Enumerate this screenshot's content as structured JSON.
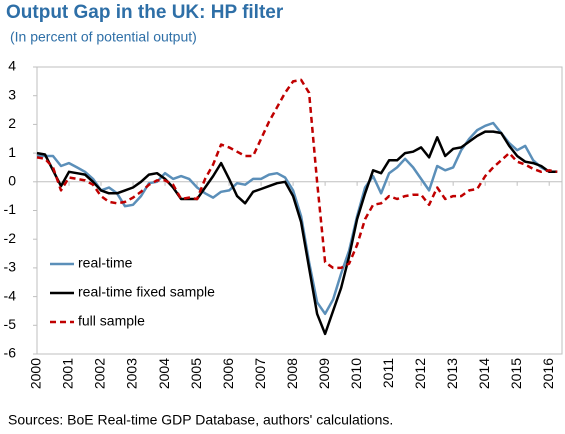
{
  "chart_data": {
    "type": "line",
    "title": "Output Gap in the UK: HP filter",
    "subtitle": "(In percent of potential output)",
    "source": "Sources: BoE Real-time GDP Database, authors' calculations.",
    "x": [
      2000,
      2000.25,
      2000.5,
      2000.75,
      2001,
      2001.25,
      2001.5,
      2001.75,
      2002,
      2002.25,
      2002.5,
      2002.75,
      2003,
      2003.25,
      2003.5,
      2003.75,
      2004,
      2004.25,
      2004.5,
      2004.75,
      2005,
      2005.25,
      2005.5,
      2005.75,
      2006,
      2006.25,
      2006.5,
      2006.75,
      2007,
      2007.25,
      2007.5,
      2007.75,
      2008,
      2008.25,
      2008.5,
      2008.75,
      2009,
      2009.25,
      2009.5,
      2009.75,
      2010,
      2010.25,
      2010.5,
      2010.75,
      2011,
      2011.25,
      2011.5,
      2011.75,
      2012,
      2012.25,
      2012.5,
      2012.75,
      2013,
      2013.25,
      2013.5,
      2013.75,
      2014,
      2014.25,
      2014.5,
      2014.75,
      2015,
      2015.25,
      2015.5,
      2015.75,
      2016,
      2016.25
    ],
    "series": [
      {
        "name": "real-time",
        "color": "#5b8fb9",
        "dashed": false,
        "values": [
          0.9,
          0.9,
          0.9,
          0.55,
          0.65,
          0.5,
          0.35,
          0.1,
          -0.3,
          -0.2,
          -0.4,
          -0.85,
          -0.8,
          -0.5,
          -0.05,
          0.0,
          0.3,
          0.1,
          0.2,
          0.1,
          -0.2,
          -0.4,
          -0.55,
          -0.35,
          -0.3,
          -0.05,
          -0.1,
          0.1,
          0.1,
          0.25,
          0.3,
          0.15,
          -0.3,
          -1.2,
          -2.8,
          -4.2,
          -4.6,
          -4.1,
          -3.2,
          -2.4,
          -1.2,
          -0.2,
          0.2,
          -0.4,
          0.3,
          0.5,
          0.8,
          0.5,
          0.1,
          -0.3,
          0.55,
          0.4,
          0.5,
          1.1,
          1.5,
          1.8,
          1.95,
          2.05,
          1.7,
          1.35,
          1.1,
          1.25,
          0.75,
          0.5,
          0.35,
          0.35
        ]
      },
      {
        "name": "real-time fixed sample",
        "color": "#000000",
        "dashed": false,
        "values": [
          1.0,
          0.95,
          0.4,
          -0.15,
          0.35,
          0.3,
          0.25,
          0.0,
          -0.3,
          -0.4,
          -0.4,
          -0.3,
          -0.2,
          0.0,
          0.25,
          0.3,
          0.1,
          -0.2,
          -0.6,
          -0.6,
          -0.6,
          -0.2,
          0.2,
          0.65,
          0.1,
          -0.5,
          -0.75,
          -0.35,
          -0.25,
          -0.15,
          -0.05,
          0.0,
          -0.5,
          -1.4,
          -3.0,
          -4.6,
          -5.3,
          -4.5,
          -3.7,
          -2.6,
          -1.3,
          -0.4,
          0.4,
          0.3,
          0.75,
          0.75,
          1.0,
          1.05,
          1.2,
          0.85,
          1.55,
          0.9,
          1.15,
          1.2,
          1.4,
          1.6,
          1.75,
          1.75,
          1.7,
          1.25,
          0.9,
          0.7,
          0.65,
          0.55,
          0.35,
          0.35
        ]
      },
      {
        "name": "full sample",
        "color": "#c00000",
        "dashed": true,
        "values": [
          0.85,
          0.8,
          0.5,
          -0.3,
          0.15,
          0.1,
          0.05,
          -0.1,
          -0.5,
          -0.7,
          -0.75,
          -0.7,
          -0.55,
          -0.35,
          -0.1,
          0.05,
          0.05,
          -0.1,
          -0.6,
          -0.55,
          -0.6,
          0.1,
          0.6,
          1.3,
          1.2,
          1.05,
          0.9,
          0.9,
          1.5,
          2.1,
          2.6,
          3.1,
          3.5,
          3.55,
          3.1,
          0.0,
          -2.8,
          -3.0,
          -3.0,
          -2.85,
          -2.2,
          -1.3,
          -0.8,
          -0.75,
          -0.5,
          -0.6,
          -0.5,
          -0.45,
          -0.45,
          -0.8,
          -0.2,
          -0.6,
          -0.5,
          -0.5,
          -0.3,
          -0.25,
          0.2,
          0.5,
          0.75,
          1.0,
          0.7,
          0.6,
          0.45,
          0.35,
          0.4,
          0.35
        ]
      }
    ],
    "xlim": [
      2000,
      2016.4
    ],
    "xticks": [
      2000,
      2001,
      2002,
      2003,
      2004,
      2005,
      2006,
      2007,
      2008,
      2009,
      2010,
      2011,
      2012,
      2013,
      2014,
      2015,
      2016
    ],
    "ylim": [
      -6,
      4
    ],
    "yticks": [
      -6,
      -5,
      -4,
      -3,
      -2,
      -1,
      0,
      1,
      2,
      3,
      4
    ]
  }
}
